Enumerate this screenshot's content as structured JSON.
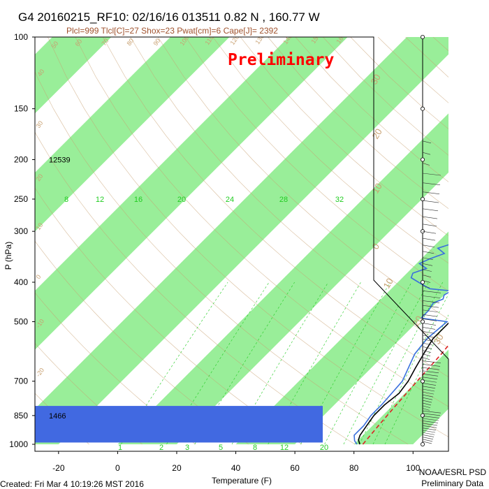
{
  "title": "G4 20160215_RF10: 02/16/16 013511    0.82 N , 160.77 W",
  "subtitle": "Plcl=999 Tlcl[C]=27 Shox=23 Pwat[cm]=6 Cape[J]= 2392",
  "stamp": "Preliminary",
  "footer_left": "Created: Fri Mar  4 10:19:26 MST 2016",
  "footer_right_1": "NOAA/ESRL PSD",
  "footer_right_2": "Preliminary Data",
  "colors": {
    "band": "#99ee99",
    "dewpoint": "#3a70dd",
    "temperature": "#000000",
    "parcel": "#dd2222",
    "dry_adiabat": "#c8a070",
    "mixing_ratio": "#22cc22",
    "cloud_fill": "#4169e1"
  },
  "chart_data": {
    "type": "skew-t",
    "xlabel": "Temperature (F)",
    "ylabel": "P (hPa)",
    "x_ticks": [
      "-20",
      "0",
      "20",
      "40",
      "60",
      "80",
      "100"
    ],
    "y_ticks": [
      "100",
      "150",
      "200",
      "250",
      "300",
      "400",
      "500",
      "700",
      "850",
      "1000"
    ],
    "x_range_F": [
      -28,
      112
    ],
    "y_range_hPa": [
      100,
      1000
    ],
    "log_pressure_axis": true,
    "height_labels": [
      {
        "p": 200,
        "text": "12539"
      },
      {
        "p": 850,
        "text": "1466"
      }
    ],
    "mixing_ratio_labels": [
      "8",
      "12",
      "16",
      "20",
      "24",
      "28",
      "32"
    ],
    "mixing_ratio_labels_bottom": [
      "1",
      "2",
      "3",
      "5",
      "8",
      "12",
      "20"
    ],
    "dry_adiabat_labels": [
      "50",
      "60",
      "70",
      "80",
      "90",
      "100",
      "110",
      "120",
      "130",
      "140",
      "150",
      "160",
      "40",
      "30",
      "20",
      "10",
      "0",
      "-10",
      "-20"
    ],
    "moist_adiabat_labels": [
      "30",
      "20",
      "10",
      "0",
      "10",
      "20",
      "30"
    ],
    "temperature": {
      "p": [
        1000,
        975,
        950,
        900,
        850,
        800,
        750,
        700,
        650,
        600,
        550,
        500,
        450,
        400,
        350,
        300,
        250,
        200,
        175
      ],
      "t": [
        82,
        80,
        79,
        78,
        77,
        77,
        78,
        77,
        75,
        73,
        71,
        71,
        68,
        66,
        62,
        57,
        51,
        43,
        34
      ]
    },
    "dewpoint": {
      "p": [
        1000,
        980,
        950,
        900,
        850,
        800,
        700,
        600,
        550,
        500,
        490,
        470,
        450,
        440,
        430,
        420,
        415,
        410,
        400,
        390,
        380,
        370,
        360,
        350,
        340,
        330,
        320,
        300,
        270,
        240,
        220,
        200
      ],
      "t": [
        81,
        79,
        77,
        77,
        76,
        76,
        75,
        70,
        69,
        70,
        60,
        60,
        59,
        61,
        60,
        61,
        53,
        51,
        47,
        43,
        42,
        45,
        41,
        43,
        46,
        42,
        46,
        44,
        39,
        35,
        31,
        23
      ]
    },
    "parcel": {
      "p": [
        1000,
        900,
        800,
        700,
        600,
        500,
        400,
        300,
        250,
        200,
        180
      ],
      "t": [
        83,
        82,
        81,
        80,
        79,
        77,
        72,
        65,
        59,
        48,
        37
      ]
    },
    "cloud_layer_hPa": [
      805,
      990
    ],
    "wind_staff_heights_hPa": [
      100,
      150,
      200,
      250,
      300,
      400,
      500,
      700,
      850,
      1000
    ]
  }
}
